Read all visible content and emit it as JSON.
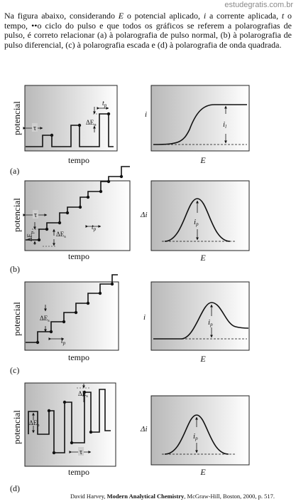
{
  "site": "estudegratis.com.br",
  "question": {
    "p1": "Na figura abaixo, considerando ",
    "E": "E",
    "p2": " o potencial aplicado, ",
    "i": "i",
    "p3": " a corrente aplicada, ",
    "t": "t",
    "p4": " o tempo, ••o ciclo do pulso e que todos os gráficos se referem a polarografias de pulso, é correto relacionar (a) à polarografia de pulso normal, (b) à polarografia de pulso diferencial, (c) à polarografia escada e (d) à polarografia de onda quadrada."
  },
  "labels": {
    "potencial": "potencial",
    "tempo": "tempo",
    "E": "E",
    "i": "i",
    "delta_i": "Δi",
    "i_l": "i",
    "i_l_sub": "l",
    "i_p": "i",
    "i_p_sub": "p",
    "tau": "τ",
    "t_p": "t",
    "t_p_sub": "p",
    "dE": "ΔE",
    "dE_p_sub": "p",
    "dE_s_sub": "s"
  },
  "panels": [
    {
      "id": "a",
      "label": "(a)",
      "response": "sigmoid"
    },
    {
      "id": "b",
      "label": "(b)",
      "response": "peak"
    },
    {
      "id": "c",
      "label": "(c)",
      "response": "peak-tail"
    },
    {
      "id": "d",
      "label": "(d)",
      "response": "peak"
    }
  ],
  "citation": {
    "author": "David Harvey, ",
    "title": "Modern Analytical Chemistry",
    "rest": ", McGraw-Hill, Boston, 2000, p. 517."
  }
}
